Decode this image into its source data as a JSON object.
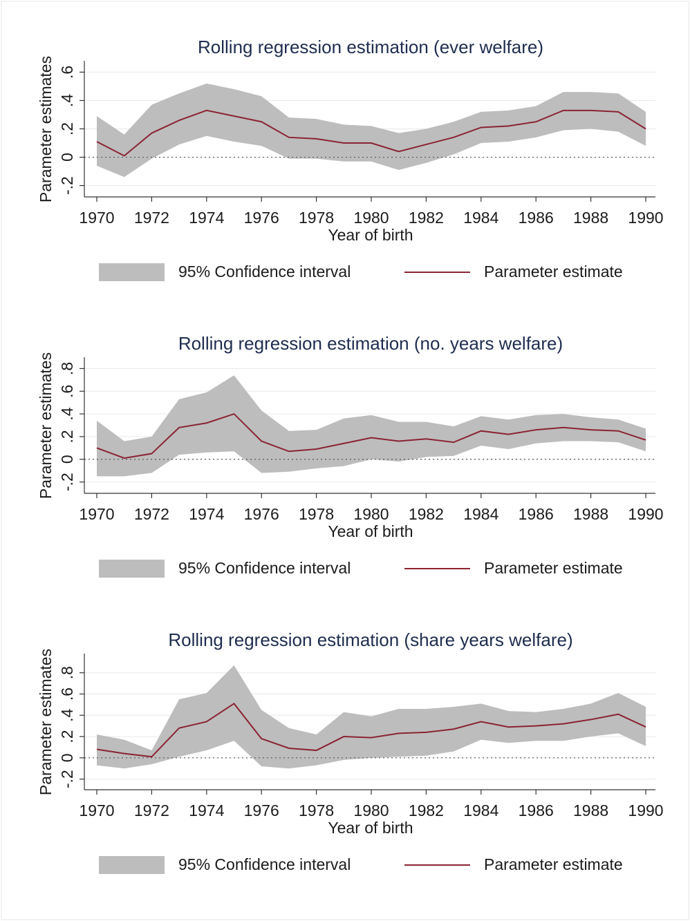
{
  "chart_data": [
    {
      "type": "line",
      "title": "Rolling regression estimation (ever welfare)",
      "xlabel": "Year of birth",
      "ylabel": "Parameter estimates",
      "x": [
        1970,
        1971,
        1972,
        1973,
        1974,
        1975,
        1976,
        1977,
        1978,
        1979,
        1980,
        1981,
        1982,
        1983,
        1984,
        1985,
        1986,
        1987,
        1988,
        1989,
        1990
      ],
      "series": [
        {
          "name": "95% Confidence interval",
          "color": "#bdbdbd",
          "upper": [
            0.29,
            0.16,
            0.37,
            0.45,
            0.52,
            0.48,
            0.43,
            0.28,
            0.27,
            0.23,
            0.22,
            0.17,
            0.2,
            0.25,
            0.32,
            0.33,
            0.36,
            0.46,
            0.46,
            0.45,
            0.32
          ],
          "lower": [
            -0.06,
            -0.14,
            -0.01,
            0.09,
            0.15,
            0.11,
            0.08,
            -0.01,
            -0.01,
            -0.03,
            -0.03,
            -0.09,
            -0.04,
            0.02,
            0.1,
            0.11,
            0.14,
            0.19,
            0.2,
            0.18,
            0.08
          ]
        },
        {
          "name": "Parameter estimate",
          "color": "#8b2331",
          "values": [
            0.11,
            0.01,
            0.17,
            0.26,
            0.33,
            0.29,
            0.25,
            0.14,
            0.13,
            0.1,
            0.1,
            0.04,
            0.09,
            0.14,
            0.21,
            0.22,
            0.25,
            0.33,
            0.33,
            0.32,
            0.2
          ]
        }
      ],
      "xlim": [
        1970,
        1990
      ],
      "xticks": [
        1970,
        1972,
        1974,
        1976,
        1978,
        1980,
        1982,
        1984,
        1986,
        1988,
        1990
      ],
      "ylim": [
        -0.28,
        0.68
      ],
      "yticks": [
        {
          "value": -0.2,
          "label": "-.2"
        },
        0,
        {
          "value": 0.2,
          "label": ".2"
        },
        {
          "value": 0.4,
          "label": ".4"
        },
        {
          "value": 0.6,
          "label": ".6"
        }
      ],
      "refline": 0,
      "grid": true,
      "legend": "bottom"
    },
    {
      "type": "line",
      "title": "Rolling regression estimation (no. years welfare)",
      "xlabel": "Year of birth",
      "ylabel": "Parameter estimates",
      "x": [
        1970,
        1971,
        1972,
        1973,
        1974,
        1975,
        1976,
        1977,
        1978,
        1979,
        1980,
        1981,
        1982,
        1983,
        1984,
        1985,
        1986,
        1987,
        1988,
        1989,
        1990
      ],
      "series": [
        {
          "name": "95% Confidence interval",
          "color": "#bdbdbd",
          "upper": [
            0.34,
            0.16,
            0.2,
            0.53,
            0.59,
            0.74,
            0.43,
            0.25,
            0.26,
            0.36,
            0.39,
            0.33,
            0.33,
            0.29,
            0.38,
            0.35,
            0.39,
            0.4,
            0.37,
            0.35,
            0.27
          ],
          "lower": [
            -0.15,
            -0.15,
            -0.12,
            0.04,
            0.06,
            0.07,
            -0.12,
            -0.11,
            -0.08,
            -0.06,
            0,
            -0.02,
            0.02,
            0.03,
            0.12,
            0.09,
            0.14,
            0.16,
            0.16,
            0.15,
            0.07
          ]
        },
        {
          "name": "Parameter estimate",
          "color": "#8b2331",
          "values": [
            0.1,
            0.01,
            0.05,
            0.28,
            0.32,
            0.4,
            0.16,
            0.07,
            0.09,
            0.14,
            0.19,
            0.16,
            0.18,
            0.15,
            0.25,
            0.22,
            0.26,
            0.28,
            0.26,
            0.25,
            0.17
          ]
        }
      ],
      "xlim": [
        1970,
        1990
      ],
      "xticks": [
        1970,
        1972,
        1974,
        1976,
        1978,
        1980,
        1982,
        1984,
        1986,
        1988,
        1990
      ],
      "ylim": [
        -0.3,
        0.9
      ],
      "yticks": [
        {
          "value": -0.2,
          "label": "-.2"
        },
        0,
        {
          "value": 0.2,
          "label": ".2"
        },
        {
          "value": 0.4,
          "label": ".4"
        },
        {
          "value": 0.6,
          "label": ".6"
        },
        {
          "value": 0.8,
          "label": ".8"
        }
      ],
      "refline": 0,
      "grid": true,
      "legend": "bottom"
    },
    {
      "type": "line",
      "title": "Rolling regression estimation (share years welfare)",
      "xlabel": "Year of birth",
      "ylabel": "Parameter estimates",
      "x": [
        1970,
        1971,
        1972,
        1973,
        1974,
        1975,
        1976,
        1977,
        1978,
        1979,
        1980,
        1981,
        1982,
        1983,
        1984,
        1985,
        1986,
        1987,
        1988,
        1989,
        1990
      ],
      "series": [
        {
          "name": "95% Confidence interval",
          "color": "#bdbdbd",
          "upper": [
            0.22,
            0.17,
            0.07,
            0.55,
            0.61,
            0.87,
            0.45,
            0.28,
            0.22,
            0.43,
            0.39,
            0.46,
            0.46,
            0.48,
            0.51,
            0.44,
            0.43,
            0.46,
            0.51,
            0.61,
            0.48
          ],
          "lower": [
            -0.07,
            -0.1,
            -0.06,
            0.01,
            0.07,
            0.16,
            -0.08,
            -0.1,
            -0.07,
            -0.02,
            0,
            0.01,
            0.02,
            0.06,
            0.17,
            0.14,
            0.16,
            0.16,
            0.2,
            0.23,
            0.11
          ]
        },
        {
          "name": "Parameter estimate",
          "color": "#8b2331",
          "values": [
            0.08,
            0.04,
            0.01,
            0.28,
            0.34,
            0.51,
            0.18,
            0.09,
            0.07,
            0.2,
            0.19,
            0.23,
            0.24,
            0.27,
            0.34,
            0.29,
            0.3,
            0.32,
            0.36,
            0.41,
            0.29
          ]
        }
      ],
      "xlim": [
        1970,
        1990
      ],
      "xticks": [
        1970,
        1972,
        1974,
        1976,
        1978,
        1980,
        1982,
        1984,
        1986,
        1988,
        1990
      ],
      "ylim": [
        -0.3,
        0.98
      ],
      "yticks": [
        {
          "value": -0.2,
          "label": "-.2"
        },
        0,
        {
          "value": 0.2,
          "label": ".2"
        },
        {
          "value": 0.4,
          "label": ".4"
        },
        {
          "value": 0.6,
          "label": ".6"
        },
        {
          "value": 0.8,
          "label": ".8"
        }
      ],
      "refline": 0,
      "grid": true,
      "legend": "bottom"
    }
  ]
}
